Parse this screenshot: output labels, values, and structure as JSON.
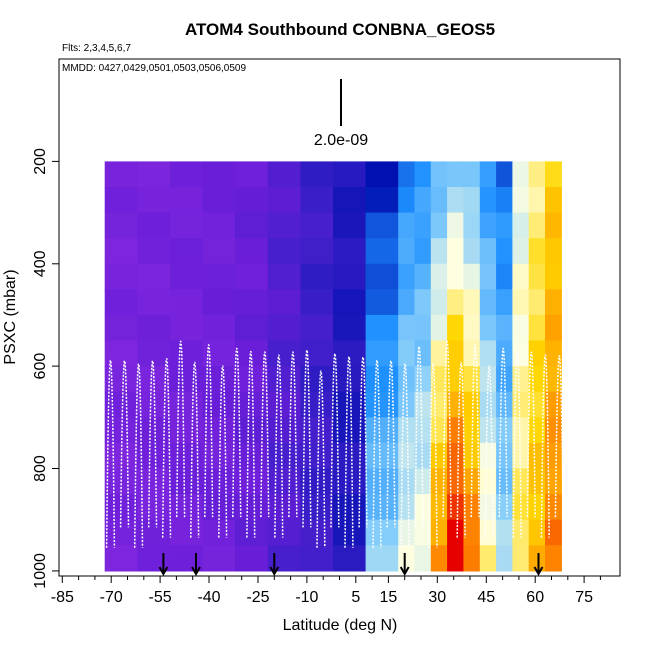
{
  "chart_data": {
    "type": "heatmap",
    "title": "ATOM4 Southbound CONBNA_GEOS5",
    "flights_label": "Flts: 2,3,4,5,6,7",
    "mmdd_label": "MMDD: 0427,0429,0501,0503,0506,0509",
    "scale_label": "2.0e-09",
    "xlabel": "Latitude (deg N)",
    "ylabel": "PSXC (mbar)",
    "xlim": [
      -86,
      86
    ],
    "ylim": [
      1010,
      0
    ],
    "x_ticks": [
      -85,
      -70,
      -55,
      -40,
      -25,
      -10,
      5,
      15,
      30,
      45,
      60,
      75
    ],
    "x_tick_labels": [
      "-85",
      "-70",
      "-55",
      "-40",
      "-25",
      "-10",
      "5",
      "15",
      "30",
      "45",
      "60",
      "75"
    ],
    "y_ticks": [
      200,
      400,
      600,
      800,
      1000
    ],
    "y_tick_labels": [
      "200",
      "400",
      "600",
      "800",
      "1000"
    ],
    "pressure_levels": [
      200,
      250,
      300,
      350,
      400,
      450,
      500,
      550,
      600,
      650,
      700,
      750,
      800,
      850,
      900,
      950,
      1000
    ],
    "latitude_bins": [
      -72,
      -62,
      -52,
      -42,
      -32,
      -22,
      -12,
      -2,
      8,
      18,
      23,
      28,
      33,
      38,
      43,
      48,
      53,
      58,
      63,
      68
    ],
    "markers_lat": [
      -54,
      -44,
      -20,
      20,
      61
    ],
    "colormap": [
      "#8a2be2",
      "#6a1ed8",
      "#3c1fc8",
      "#0010b0",
      "#1e90ff",
      "#87cefa",
      "#ffffe0",
      "#ffd700",
      "#ff8c00",
      "#e60000"
    ],
    "profile_color": "#ffffff"
  }
}
